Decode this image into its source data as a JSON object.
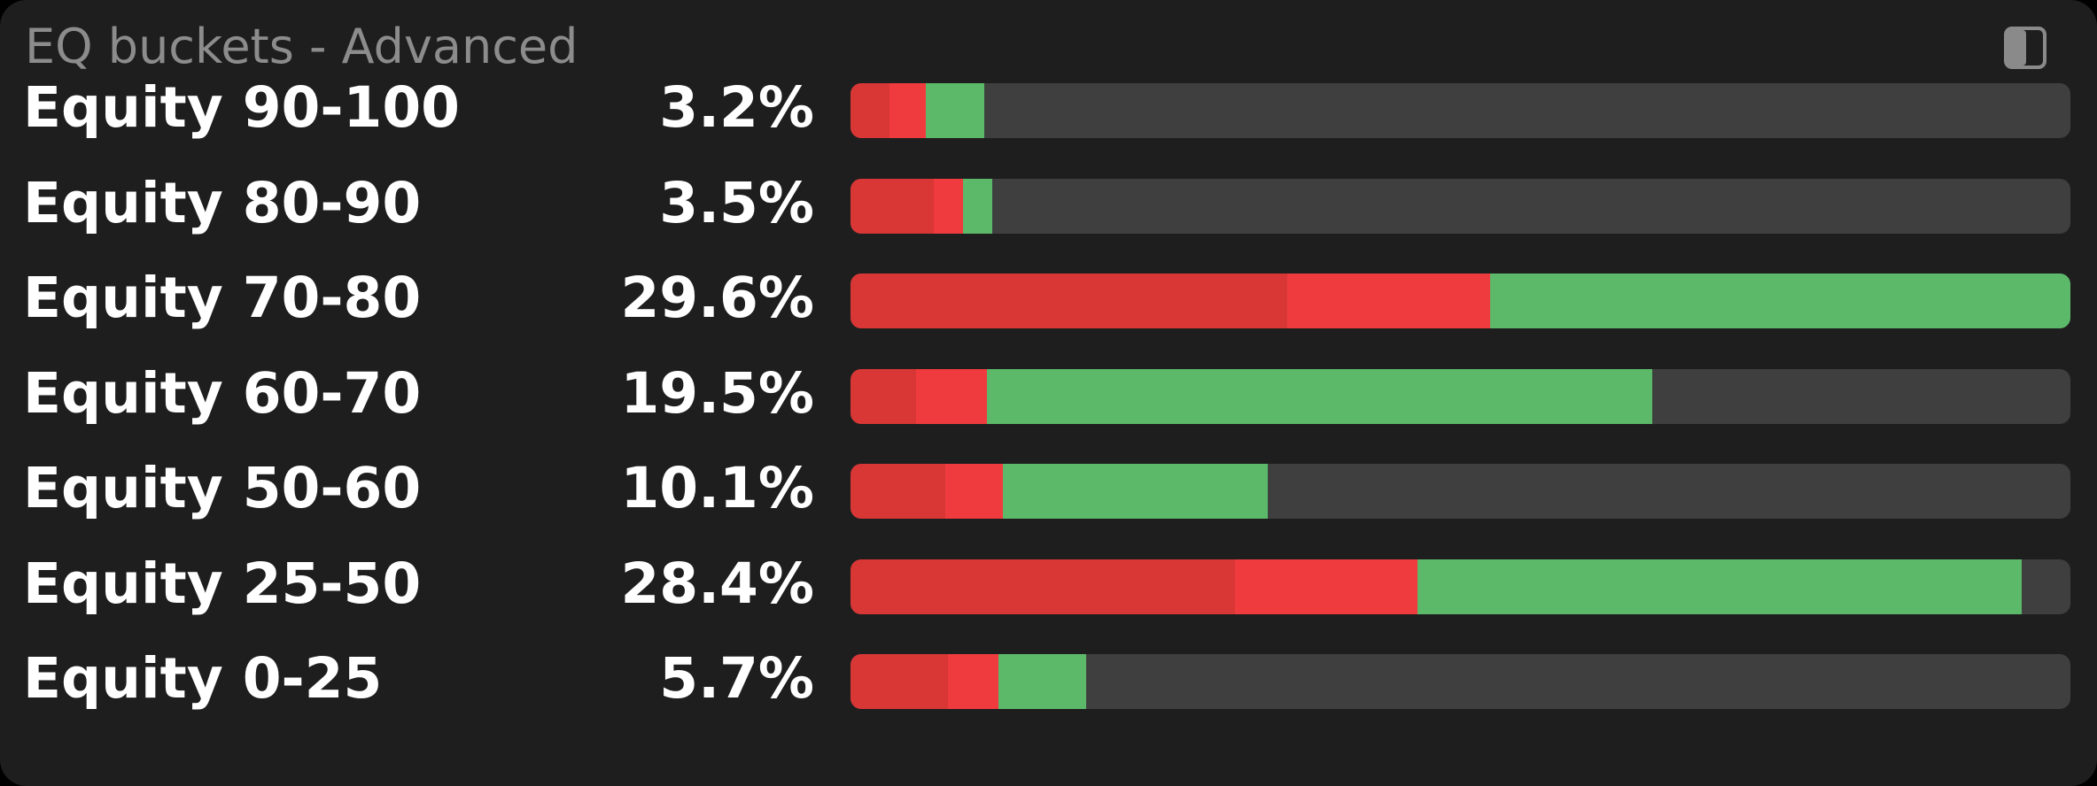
{
  "header": {
    "title": "EQ buckets - Advanced",
    "toggle_icon": "sidebar-panel-icon"
  },
  "colors": {
    "panel_bg": "#1e1e1e",
    "track": "#3f3f3f",
    "dark_red": "#d93636",
    "red": "#ef3b3e",
    "green": "#5cb96a"
  },
  "buckets": [
    {
      "label": "Equity 90-100",
      "percent": "3.2%",
      "segments": [
        0.032,
        0.03,
        0.048
      ]
    },
    {
      "label": "Equity 80-90",
      "percent": "3.5%",
      "segments": [
        0.068,
        0.024,
        0.024
      ]
    },
    {
      "label": "Equity 70-80",
      "percent": "29.6%",
      "segments": [
        0.358,
        0.166,
        0.476
      ]
    },
    {
      "label": "Equity 60-70",
      "percent": "19.5%",
      "segments": [
        0.054,
        0.058,
        0.545
      ]
    },
    {
      "label": "Equity 50-60",
      "percent": "10.1%",
      "segments": [
        0.078,
        0.047,
        0.217
      ]
    },
    {
      "label": "Equity 25-50",
      "percent": "28.4%",
      "segments": [
        0.315,
        0.15,
        0.495
      ]
    },
    {
      "label": "Equity 0-25",
      "percent": "5.7%",
      "segments": [
        0.08,
        0.041,
        0.072
      ]
    }
  ]
}
